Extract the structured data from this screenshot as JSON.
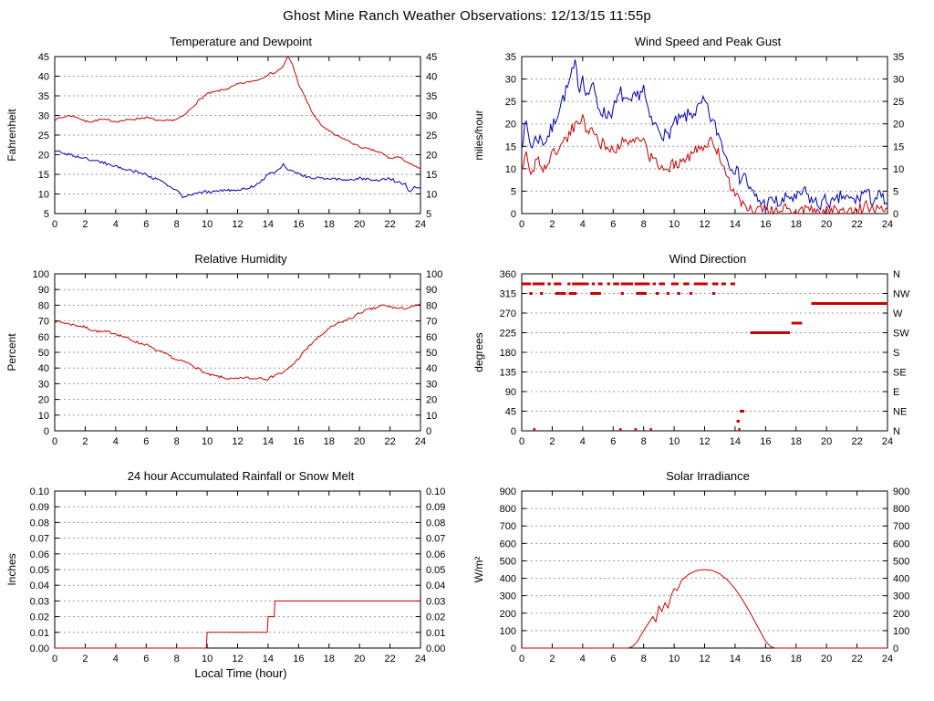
{
  "page_title": "Ghost Mine Ranch Weather Observations: 12/13/15 11:55p",
  "x_axis": {
    "label": "Local Time (hour)",
    "min": 0,
    "max": 24,
    "tick_step": 2
  },
  "colors": {
    "red": "#cc0000",
    "blue": "#0000bb",
    "grid": "#999999",
    "axis": "#000000"
  },
  "chart_data": [
    {
      "type": "line",
      "title": "Temperature and Dewpoint",
      "ylabel": "Fahrenheit",
      "ylim": [
        5,
        45
      ],
      "ytick_step": 5,
      "ytick_decimals": 0,
      "series": [
        {
          "name": "Temperature",
          "color": "#cc0000",
          "noise": 0.25,
          "x": [
            0,
            0.5,
            1,
            1.5,
            2,
            2.5,
            3,
            3.5,
            4,
            4.5,
            5,
            5.5,
            6,
            6.5,
            7,
            7.5,
            8,
            8.5,
            9,
            9.5,
            10,
            10.5,
            11,
            11.5,
            12,
            12.5,
            13,
            13.5,
            14,
            14.5,
            15,
            15.3,
            15.6,
            16,
            16.5,
            17,
            17.5,
            18,
            18.5,
            19,
            19.5,
            20,
            20.5,
            21,
            21.5,
            22,
            22.5,
            23,
            23.5,
            24
          ],
          "y": [
            29,
            29.5,
            30,
            29.5,
            28.5,
            28.5,
            29,
            28.8,
            28.5,
            28.7,
            29,
            29.2,
            29.5,
            29,
            28.5,
            28.7,
            29,
            30,
            32,
            34,
            35.5,
            36,
            36.5,
            37,
            38,
            38.3,
            38.8,
            39.3,
            40.5,
            41,
            42.5,
            45,
            43,
            38,
            34,
            30,
            27.5,
            26,
            24.8,
            24,
            23,
            22,
            21.5,
            21,
            20.3,
            19,
            19.5,
            18.5,
            17.2,
            16.5
          ]
        },
        {
          "name": "Dewpoint",
          "color": "#0000bb",
          "noise": 0.35,
          "x": [
            0,
            1,
            2,
            3,
            4,
            5,
            6,
            6.5,
            7,
            7.5,
            8,
            8.5,
            9,
            9.5,
            10,
            10.5,
            11,
            11.5,
            12,
            12.5,
            13,
            13.5,
            14,
            14.5,
            15,
            15.4,
            16,
            16.5,
            17,
            18,
            19,
            20,
            21,
            22,
            22.5,
            23,
            23.3,
            23.6,
            24
          ],
          "y": [
            21,
            20,
            19,
            18.2,
            17,
            16,
            15,
            14,
            13.2,
            12,
            10.8,
            9,
            10,
            10.5,
            10.5,
            10.8,
            11,
            10.8,
            11,
            11.2,
            12,
            13,
            15,
            15.5,
            17.5,
            16,
            15,
            14.5,
            14,
            14,
            13.5,
            14,
            13.5,
            14,
            13,
            12.5,
            10.5,
            12,
            11.5
          ]
        }
      ]
    },
    {
      "type": "line",
      "title": "Wind Speed and Peak Gust",
      "ylabel": "miles/hour",
      "ylim": [
        0,
        35
      ],
      "ytick_step": 5,
      "ytick_decimals": 0,
      "series": [
        {
          "name": "Peak Gust",
          "color": "#0000bb",
          "noise": 1.6,
          "x": [
            0,
            0.3,
            0.6,
            1,
            1.5,
            2,
            2.5,
            3,
            3.3,
            3.5,
            3.8,
            4,
            4.3,
            4.6,
            5,
            5.5,
            6,
            6.5,
            7,
            7.5,
            8,
            8.3,
            8.6,
            9,
            9.5,
            10,
            10.5,
            11,
            11.5,
            12,
            12.3,
            12.6,
            13,
            13.5,
            14,
            14.3,
            14.6,
            15,
            15.5,
            16,
            16.5,
            17,
            17.5,
            18,
            18.5,
            19,
            19.5,
            20,
            20.5,
            21,
            21.5,
            22,
            22.5,
            23,
            23.5,
            24
          ],
          "y": [
            16,
            20,
            15,
            17,
            16,
            19,
            24,
            28,
            31,
            33,
            28,
            31,
            26,
            29,
            24,
            22,
            23,
            27,
            24,
            26,
            28,
            22,
            20,
            19,
            17,
            20,
            21,
            22,
            23,
            25,
            22,
            20,
            17,
            12,
            10,
            8,
            9,
            5,
            3,
            2,
            3,
            2,
            4,
            3,
            5,
            3,
            2,
            3,
            2,
            4,
            3,
            3,
            5,
            3,
            4,
            2
          ]
        },
        {
          "name": "Wind Speed",
          "color": "#cc0000",
          "noise": 1.3,
          "x": [
            0,
            0.3,
            0.6,
            1,
            1.5,
            2,
            2.5,
            3,
            3.5,
            4,
            4.3,
            4.6,
            5,
            5.5,
            6,
            6.5,
            7,
            7.5,
            8,
            8.3,
            8.6,
            9,
            9.5,
            10,
            10.5,
            11,
            11.5,
            12,
            12.5,
            13,
            13.3,
            13.6,
            14,
            14.5,
            15,
            16,
            17,
            18,
            19,
            20,
            21,
            22,
            22.5,
            23,
            23.5,
            24
          ],
          "y": [
            10,
            13,
            9,
            12,
            10,
            13,
            15,
            17,
            20,
            21,
            18,
            20,
            16,
            15,
            14,
            16,
            15,
            17,
            16,
            13,
            12,
            11,
            10,
            11,
            12,
            13,
            14,
            15,
            16,
            13,
            10,
            7,
            4,
            2,
            1,
            0.5,
            1,
            0.5,
            1,
            0.5,
            1,
            0.5,
            2,
            1,
            2,
            1
          ]
        }
      ]
    },
    {
      "type": "line",
      "title": "Relative Humidity",
      "ylabel": "Percent",
      "ylim": [
        0,
        100
      ],
      "ytick_step": 10,
      "ytick_decimals": 0,
      "series": [
        {
          "name": "Relative Humidity",
          "color": "#cc0000",
          "noise": 0.8,
          "x": [
            0,
            0.5,
            1,
            1.5,
            2,
            2.5,
            3,
            3.5,
            4,
            4.5,
            5,
            5.5,
            6,
            6.5,
            7,
            7.5,
            8,
            8.5,
            9,
            9.5,
            10,
            10.5,
            11,
            11.5,
            12,
            12.5,
            13,
            13.5,
            14,
            14.5,
            15,
            15.5,
            16,
            16.5,
            17,
            17.5,
            18,
            18.5,
            19,
            19.5,
            20,
            20.5,
            21,
            21.5,
            22,
            22.5,
            23,
            23.5,
            24
          ],
          "y": [
            70,
            69,
            68,
            67,
            66,
            64,
            63,
            63,
            62,
            60,
            58,
            56,
            55,
            52,
            50,
            48,
            45,
            44,
            42,
            39,
            36,
            35,
            34,
            33,
            33,
            34,
            33,
            34,
            33,
            36,
            37,
            41,
            46,
            52,
            57,
            61,
            65,
            68,
            70,
            72,
            75,
            77,
            78,
            80,
            79,
            78,
            78,
            79,
            81
          ]
        }
      ]
    },
    {
      "type": "segments",
      "title": "Wind Direction",
      "ylabel": "degrees",
      "ylim": [
        0,
        360
      ],
      "ytick_step": 45,
      "ytick_decimals": 0,
      "right_labels": [
        "N",
        "NE",
        "E",
        "SE",
        "S",
        "SW",
        "W",
        "NW",
        "N"
      ],
      "series": [
        {
          "name": "Wind Direction",
          "color": "#cc0000",
          "segments": [
            [
              0,
              0.6,
              337
            ],
            [
              0.7,
              1.5,
              337
            ],
            [
              1.7,
              1.9,
              337
            ],
            [
              2.1,
              2.6,
              337
            ],
            [
              3.0,
              3.2,
              337
            ],
            [
              3.3,
              4.4,
              337
            ],
            [
              4.6,
              4.8,
              337
            ],
            [
              5.0,
              5.3,
              337
            ],
            [
              5.6,
              5.8,
              337
            ],
            [
              6.0,
              6.4,
              337
            ],
            [
              6.5,
              7.3,
              337
            ],
            [
              7.4,
              8.4,
              337
            ],
            [
              8.6,
              8.8,
              337
            ],
            [
              9.0,
              9.4,
              337
            ],
            [
              9.8,
              10.3,
              337
            ],
            [
              10.6,
              11.0,
              337
            ],
            [
              11.3,
              12.2,
              337
            ],
            [
              12.5,
              12.9,
              337
            ],
            [
              13.1,
              13.4,
              337
            ],
            [
              13.7,
              14.0,
              337
            ],
            [
              0.5,
              0.7,
              315
            ],
            [
              1.2,
              1.4,
              315
            ],
            [
              2.2,
              2.9,
              315
            ],
            [
              3.1,
              3.6,
              315
            ],
            [
              4.5,
              5.2,
              315
            ],
            [
              6.5,
              6.7,
              315
            ],
            [
              7.5,
              8.2,
              315
            ],
            [
              8.8,
              9.0,
              315
            ],
            [
              9.5,
              9.7,
              315
            ],
            [
              10.2,
              10.4,
              315
            ],
            [
              11.0,
              11.2,
              315
            ],
            [
              12.5,
              12.7,
              315
            ],
            [
              0.75,
              0.9,
              3
            ],
            [
              6.4,
              6.55,
              3
            ],
            [
              7.4,
              7.55,
              3
            ],
            [
              8.4,
              8.55,
              3
            ],
            [
              14.2,
              14.35,
              3
            ],
            [
              14.1,
              14.3,
              22
            ],
            [
              14.3,
              14.6,
              45
            ],
            [
              15.0,
              17.6,
              225
            ],
            [
              17.7,
              18.4,
              247
            ],
            [
              19.0,
              24.0,
              292
            ]
          ]
        }
      ]
    },
    {
      "type": "line",
      "title": "24 hour Accumulated Rainfall or Snow Melt",
      "ylabel": "Inches",
      "xlabel": "Local Time (hour)",
      "ylim": [
        0,
        0.1
      ],
      "ytick_step": 0.01,
      "ytick_decimals": 2,
      "series": [
        {
          "name": "Accumulated Rainfall",
          "color": "#cc0000",
          "noise": 0,
          "x": [
            0,
            9.95,
            10,
            13.95,
            14,
            14.4,
            14.45,
            24
          ],
          "y": [
            0,
            0,
            0.01,
            0.01,
            0.02,
            0.02,
            0.03,
            0.03
          ]
        }
      ]
    },
    {
      "type": "line",
      "title": "Solar Irradiance",
      "ylabel": "W/m²",
      "ylim": [
        0,
        900
      ],
      "ytick_step": 100,
      "ytick_decimals": 0,
      "series": [
        {
          "name": "Solar Irradiance",
          "color": "#cc0000",
          "noise": 0,
          "x": [
            0,
            7,
            7.3,
            7.6,
            8,
            8.3,
            8.6,
            8.8,
            9,
            9.2,
            9.4,
            9.6,
            9.8,
            10,
            10.2,
            10.5,
            11,
            11.5,
            12,
            12.5,
            13,
            13.5,
            14,
            14.5,
            15,
            15.5,
            16,
            16.3,
            16.6,
            17,
            24
          ],
          "y": [
            0,
            0,
            10,
            40,
            100,
            140,
            180,
            150,
            240,
            210,
            260,
            230,
            300,
            340,
            330,
            390,
            425,
            445,
            450,
            445,
            425,
            390,
            340,
            275,
            200,
            120,
            40,
            10,
            0,
            0,
            0
          ]
        }
      ]
    }
  ]
}
